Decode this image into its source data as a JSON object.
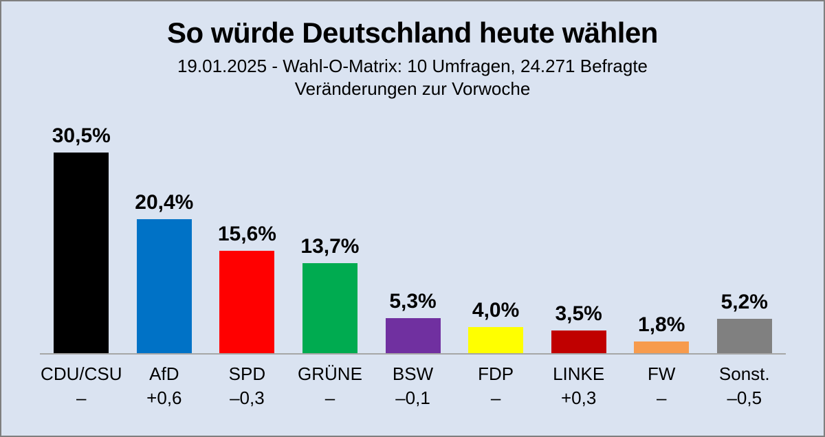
{
  "title": "So würde Deutschland heute wählen",
  "subtitle_line1": "19.01.2025 - Wahl-O-Matrix: 10 Umfragen, 24.271 Befragte",
  "subtitle_line2": "Veränderungen zur Vorwoche",
  "colors": {
    "background": "#DAE3F1",
    "page_border": "#7F7F7F",
    "axis_line": "#A6A6A6",
    "text": "#000000"
  },
  "chart_data": {
    "type": "bar",
    "title": "So würde Deutschland heute wählen",
    "subtitle": "19.01.2025 - Wahl-O-Matrix: 10 Umfragen, 24.271 Befragte",
    "annotation": "Veränderungen zur Vorwoche",
    "xlabel": "",
    "ylabel": "",
    "ylim": [
      0,
      32
    ],
    "grid": false,
    "legend": false,
    "categories": [
      "CDU/CSU",
      "AfD",
      "SPD",
      "GRÜNE",
      "BSW",
      "FDP",
      "LINKE",
      "FW",
      "Sonst."
    ],
    "values": [
      30.5,
      20.4,
      15.6,
      13.7,
      5.3,
      4.0,
      3.5,
      1.8,
      5.2
    ],
    "value_labels": [
      "30,5%",
      "20,4%",
      "15,6%",
      "13,7%",
      "5,3%",
      "4,0%",
      "3,5%",
      "1,8%",
      "5,2%"
    ],
    "changes": [
      "–",
      "+0,6",
      "–0,3",
      "–",
      "–0,1",
      "–",
      "+0,3",
      "–",
      "–0,5"
    ],
    "bar_colors": [
      "#000000",
      "#0072C6",
      "#FF0000",
      "#00AB50",
      "#7030A0",
      "#FFFF00",
      "#C00000",
      "#F79B4D",
      "#808080"
    ]
  }
}
